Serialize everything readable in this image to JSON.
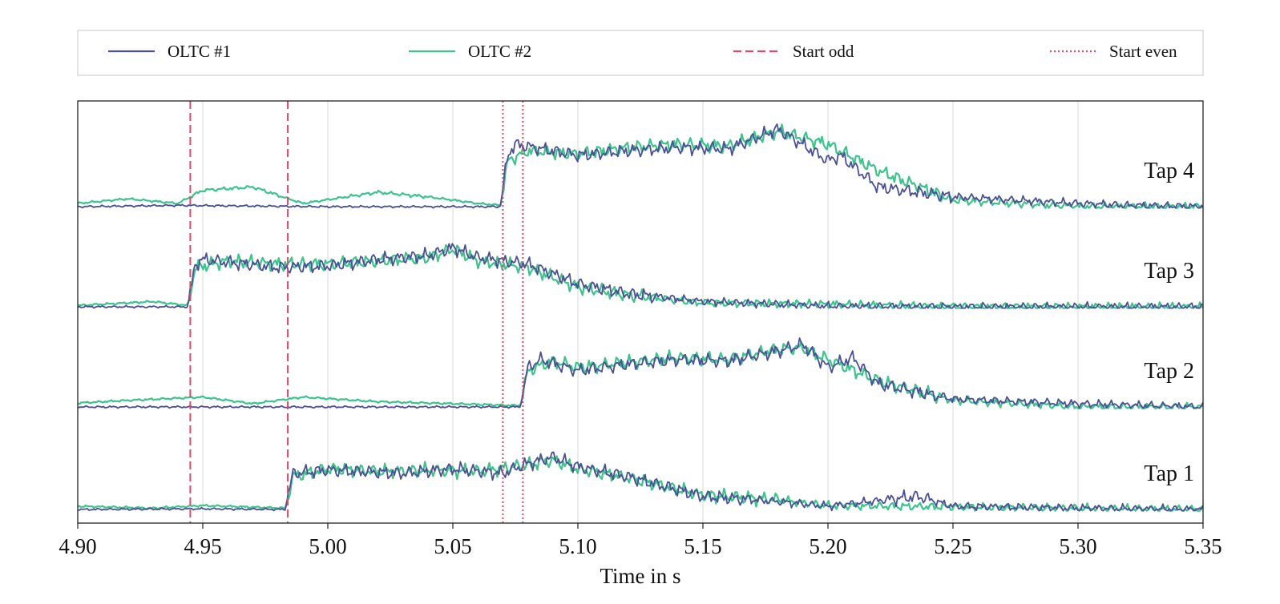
{
  "chart_data": {
    "type": "line",
    "title": "",
    "xlabel": "Time in s",
    "ylabel": "",
    "xlim": [
      4.9,
      5.35
    ],
    "x_ticks": [
      "4.90",
      "4.95",
      "5.00",
      "5.05",
      "5.10",
      "5.15",
      "5.20",
      "5.25",
      "5.30",
      "5.35"
    ],
    "grid": true,
    "legend_position": "top",
    "legend": [
      {
        "name": "OLTC #1",
        "color": "#4a4f96",
        "style": "solid"
      },
      {
        "name": "OLTC #2",
        "color": "#3cc48d",
        "style": "solid"
      },
      {
        "name": "Start odd",
        "color": "#e0476a",
        "style": "dashed"
      },
      {
        "name": "Start even",
        "color": "#e0476a",
        "style": "dotted"
      }
    ],
    "events": [
      {
        "type": "Start odd",
        "x": 4.945
      },
      {
        "type": "Start odd",
        "x": 4.984
      },
      {
        "type": "Start even",
        "x": 5.07
      },
      {
        "type": "Start even",
        "x": 5.078
      }
    ],
    "traces": [
      {
        "label": "Tap 4",
        "start": 5.07,
        "oltc1": [
          [
            4.9,
            0.0
          ],
          [
            4.94,
            0.02
          ],
          [
            5.0,
            0.0
          ],
          [
            5.069,
            0.0
          ],
          [
            5.072,
            0.8
          ],
          [
            5.075,
            0.95
          ],
          [
            5.1,
            0.78
          ],
          [
            5.12,
            0.85
          ],
          [
            5.14,
            0.9
          ],
          [
            5.16,
            0.88
          ],
          [
            5.18,
            1.18
          ],
          [
            5.2,
            0.7
          ],
          [
            5.205,
            0.78
          ],
          [
            5.22,
            0.3
          ],
          [
            5.25,
            0.15
          ],
          [
            5.3,
            0.05
          ],
          [
            5.32,
            0.02
          ],
          [
            5.35,
            0.0
          ]
        ],
        "oltc2": [
          [
            4.9,
            0.05
          ],
          [
            4.92,
            0.12
          ],
          [
            4.94,
            0.05
          ],
          [
            4.95,
            0.25
          ],
          [
            4.97,
            0.3
          ],
          [
            4.99,
            0.05
          ],
          [
            5.02,
            0.22
          ],
          [
            5.04,
            0.15
          ],
          [
            5.06,
            0.05
          ],
          [
            5.069,
            0.02
          ],
          [
            5.072,
            0.7
          ],
          [
            5.08,
            0.85
          ],
          [
            5.1,
            0.8
          ],
          [
            5.12,
            0.9
          ],
          [
            5.14,
            0.95
          ],
          [
            5.16,
            0.92
          ],
          [
            5.18,
            1.15
          ],
          [
            5.2,
            0.95
          ],
          [
            5.22,
            0.55
          ],
          [
            5.25,
            0.1
          ],
          [
            5.3,
            0.0
          ],
          [
            5.35,
            0.0
          ]
        ]
      },
      {
        "label": "Tap 3",
        "start": 4.945,
        "oltc1": [
          [
            4.9,
            0.0
          ],
          [
            4.944,
            0.0
          ],
          [
            4.947,
            0.65
          ],
          [
            4.95,
            0.72
          ],
          [
            4.98,
            0.6
          ],
          [
            5.0,
            0.62
          ],
          [
            5.02,
            0.72
          ],
          [
            5.04,
            0.78
          ],
          [
            5.05,
            0.9
          ],
          [
            5.06,
            0.75
          ],
          [
            5.08,
            0.65
          ],
          [
            5.1,
            0.35
          ],
          [
            5.12,
            0.2
          ],
          [
            5.15,
            0.08
          ],
          [
            5.2,
            0.01
          ],
          [
            5.25,
            0.0
          ],
          [
            5.35,
            0.0
          ]
        ],
        "oltc2": [
          [
            4.9,
            0.02
          ],
          [
            4.93,
            0.08
          ],
          [
            4.944,
            0.02
          ],
          [
            4.947,
            0.6
          ],
          [
            4.96,
            0.7
          ],
          [
            4.98,
            0.65
          ],
          [
            5.0,
            0.65
          ],
          [
            5.02,
            0.7
          ],
          [
            5.04,
            0.75
          ],
          [
            5.05,
            0.88
          ],
          [
            5.06,
            0.7
          ],
          [
            5.08,
            0.6
          ],
          [
            5.1,
            0.3
          ],
          [
            5.12,
            0.18
          ],
          [
            5.15,
            0.06
          ],
          [
            5.2,
            0.04
          ],
          [
            5.25,
            0.0
          ],
          [
            5.35,
            0.0
          ]
        ]
      },
      {
        "label": "Tap 2",
        "start": 5.078,
        "oltc1": [
          [
            4.9,
            0.0
          ],
          [
            4.95,
            0.0
          ],
          [
            5.0,
            0.0
          ],
          [
            5.077,
            0.0
          ],
          [
            5.08,
            0.6
          ],
          [
            5.085,
            0.72
          ],
          [
            5.1,
            0.55
          ],
          [
            5.12,
            0.65
          ],
          [
            5.14,
            0.72
          ],
          [
            5.16,
            0.7
          ],
          [
            5.18,
            0.85
          ],
          [
            5.19,
            0.95
          ],
          [
            5.2,
            0.6
          ],
          [
            5.21,
            0.75
          ],
          [
            5.22,
            0.35
          ],
          [
            5.25,
            0.12
          ],
          [
            5.3,
            0.05
          ],
          [
            5.35,
            0.0
          ]
        ],
        "oltc2": [
          [
            4.9,
            0.06
          ],
          [
            4.92,
            0.1
          ],
          [
            4.95,
            0.15
          ],
          [
            4.97,
            0.05
          ],
          [
            4.99,
            0.15
          ],
          [
            5.02,
            0.08
          ],
          [
            5.05,
            0.05
          ],
          [
            5.077,
            0.02
          ],
          [
            5.08,
            0.55
          ],
          [
            5.09,
            0.7
          ],
          [
            5.1,
            0.6
          ],
          [
            5.12,
            0.68
          ],
          [
            5.14,
            0.75
          ],
          [
            5.16,
            0.72
          ],
          [
            5.18,
            0.88
          ],
          [
            5.19,
            0.9
          ],
          [
            5.2,
            0.72
          ],
          [
            5.22,
            0.4
          ],
          [
            5.25,
            0.1
          ],
          [
            5.3,
            0.0
          ],
          [
            5.35,
            0.0
          ]
        ]
      },
      {
        "label": "Tap 1",
        "start": 4.984,
        "oltc1": [
          [
            4.9,
            0.0
          ],
          [
            4.95,
            0.01
          ],
          [
            4.983,
            0.0
          ],
          [
            4.986,
            0.55
          ],
          [
            5.0,
            0.6
          ],
          [
            5.03,
            0.55
          ],
          [
            5.05,
            0.62
          ],
          [
            5.07,
            0.55
          ],
          [
            5.08,
            0.7
          ],
          [
            5.09,
            0.8
          ],
          [
            5.1,
            0.65
          ],
          [
            5.12,
            0.5
          ],
          [
            5.15,
            0.2
          ],
          [
            5.18,
            0.12
          ],
          [
            5.2,
            0.05
          ],
          [
            5.236,
            0.2
          ],
          [
            5.25,
            0.05
          ],
          [
            5.3,
            0.02
          ],
          [
            5.35,
            0.0
          ]
        ],
        "oltc2": [
          [
            4.9,
            0.05
          ],
          [
            4.93,
            0.02
          ],
          [
            4.95,
            0.06
          ],
          [
            4.983,
            0.02
          ],
          [
            4.986,
            0.5
          ],
          [
            5.0,
            0.62
          ],
          [
            5.02,
            0.58
          ],
          [
            5.04,
            0.6
          ],
          [
            5.06,
            0.58
          ],
          [
            5.08,
            0.68
          ],
          [
            5.09,
            0.75
          ],
          [
            5.1,
            0.62
          ],
          [
            5.12,
            0.48
          ],
          [
            5.15,
            0.22
          ],
          [
            5.18,
            0.15
          ],
          [
            5.2,
            0.06
          ],
          [
            5.25,
            0.04
          ],
          [
            5.3,
            0.02
          ],
          [
            5.35,
            0.0
          ]
        ]
      }
    ]
  }
}
